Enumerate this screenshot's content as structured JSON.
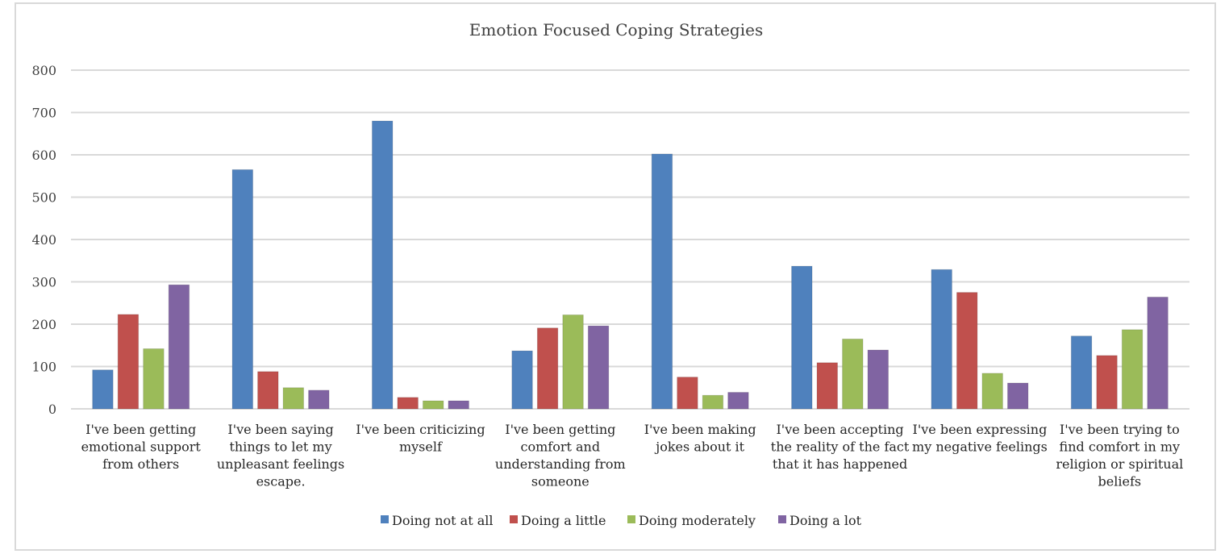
{
  "chart_data": {
    "type": "bar",
    "title": "Emotion Focused Coping Strategies",
    "xlabel": "",
    "ylabel": "",
    "ylim": [
      0,
      800
    ],
    "yticks": [
      0,
      100,
      200,
      300,
      400,
      500,
      600,
      700,
      800
    ],
    "grid": true,
    "legend_position": "bottom",
    "categories": [
      [
        "I've been getting",
        "emotional support",
        "from others"
      ],
      [
        "I've been saying",
        "things to let my",
        "unpleasant feelings",
        "escape."
      ],
      [
        "I've been criticizing",
        "myself"
      ],
      [
        "I've been getting",
        "comfort and",
        "understanding from",
        "someone"
      ],
      [
        "I've been making",
        "jokes about it"
      ],
      [
        "I've been accepting",
        "the reality of the fact",
        "that it has happened"
      ],
      [
        "I've been expressing",
        "my negative feelings"
      ],
      [
        "I've been trying to",
        "find comfort in my",
        "religion or spiritual",
        "beliefs"
      ]
    ],
    "series": [
      {
        "name": "Doing not at all",
        "color": "#4f81bd",
        "values": [
          92,
          565,
          680,
          137,
          602,
          337,
          329,
          172
        ]
      },
      {
        "name": "Doing a little",
        "color": "#c0504d",
        "values": [
          223,
          88,
          27,
          191,
          75,
          109,
          275,
          126
        ]
      },
      {
        "name": "Doing moderately",
        "color": "#9bbb59",
        "values": [
          142,
          50,
          19,
          222,
          32,
          165,
          84,
          187
        ]
      },
      {
        "name": "Doing a lot",
        "color": "#8064a2",
        "values": [
          293,
          44,
          19,
          196,
          39,
          139,
          61,
          264
        ]
      }
    ]
  }
}
